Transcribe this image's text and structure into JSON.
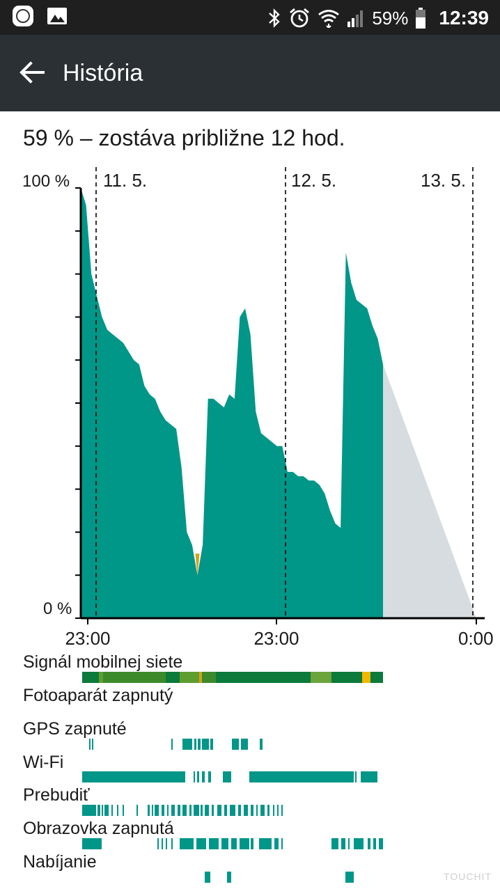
{
  "status_bar": {
    "battery_percent": "59%",
    "time": "12:39",
    "icons": [
      "mi-icon",
      "gallery-icon",
      "bluetooth-icon",
      "alarm-icon",
      "wifi-icon",
      "signal-icon",
      "battery-icon"
    ]
  },
  "app_bar": {
    "title": "História"
  },
  "summary": "59 % – zostáva približne 12 hod.",
  "chart_data": {
    "type": "area",
    "y_labels": {
      "top": "100 %",
      "bottom": "0 %"
    },
    "ylim": [
      0,
      100
    ],
    "x_tick_labels": [
      "23:00",
      "23:00",
      "0:00"
    ],
    "day_labels": [
      "11. 5.",
      "12. 5.",
      "13. 5."
    ],
    "colors": {
      "battery": "#009688",
      "low": "#d4a017",
      "projection": "#d6dcdf",
      "axis": "#000000"
    },
    "series": [
      {
        "values_comment": "battery level in percent across the timeline, read off the plot",
        "values": [
          100,
          96,
          80,
          75,
          70,
          67,
          66,
          65,
          64,
          62,
          60,
          59,
          54,
          52,
          51,
          48,
          46,
          45,
          44,
          35,
          20,
          17,
          10,
          17,
          51,
          51,
          50,
          49,
          52,
          51,
          70,
          72,
          66,
          48,
          43,
          42,
          41,
          40,
          40,
          34,
          34,
          33,
          33,
          32,
          32,
          31,
          29,
          25,
          22,
          21,
          85,
          78,
          74,
          73,
          72,
          68,
          65,
          59
        ],
        "projection_end": 0
      }
    ]
  },
  "usage_rows": [
    {
      "label": "Signál mobilnej siete"
    },
    {
      "label": "Fotoaparát zapnutý"
    },
    {
      "label": "GPS zapnuté"
    },
    {
      "label": "Wi-Fi"
    },
    {
      "label": "Prebudiť"
    },
    {
      "label": "Obrazovka zapnutá"
    },
    {
      "label": "Nabíjanie"
    }
  ],
  "watermark": "TOUCHIT"
}
